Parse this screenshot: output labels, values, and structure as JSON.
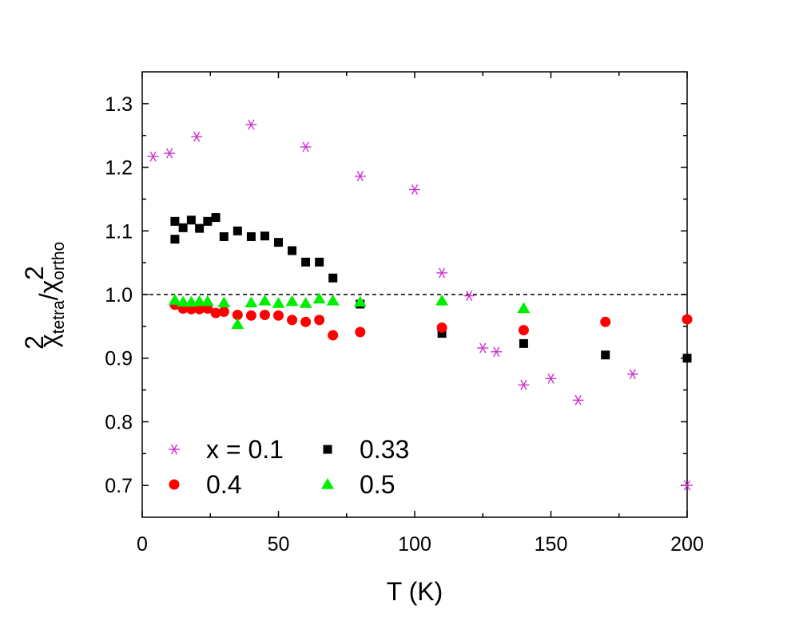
{
  "chart_data": {
    "type": "scatter",
    "title": "",
    "xlabel": "T (K)",
    "ylabel": {
      "base1": "χ",
      "sup1": "2",
      "sub1": "tetra",
      "slash": "/",
      "base2": "χ",
      "sup2": "2",
      "sub2": "ortho"
    },
    "xlim": [
      0,
      200
    ],
    "ylim": [
      0.65,
      1.35
    ],
    "x_ticks": [
      0,
      50,
      100,
      150,
      200
    ],
    "x_tick_labels": [
      "0",
      "50",
      "100",
      "150",
      "200"
    ],
    "y_ticks": [
      0.7,
      0.8,
      0.9,
      1.0,
      1.1,
      1.2,
      1.3
    ],
    "y_tick_labels": [
      "0.7",
      "0.8",
      "0.9",
      "1.0",
      "1.1",
      "1.2",
      "1.3"
    ],
    "reference_line": {
      "y": 1.0,
      "style": "dashed"
    },
    "legend_position": "bottom-left",
    "series": [
      {
        "name": "x = 0.1",
        "marker": "asterisk",
        "color": "#cc33cc",
        "x": [
          4,
          10,
          20,
          40,
          60,
          80,
          100,
          110,
          120,
          125,
          130,
          140,
          150,
          160,
          180,
          200
        ],
        "y": [
          1.217,
          1.222,
          1.248,
          1.267,
          1.232,
          1.186,
          1.165,
          1.034,
          0.998,
          0.916,
          0.91,
          0.858,
          0.868,
          0.834,
          0.875,
          0.7
        ]
      },
      {
        "name": "0.33",
        "marker": "square",
        "color": "#000000",
        "x": [
          12,
          12,
          15,
          18,
          21,
          24,
          27,
          30,
          35,
          40,
          45,
          50,
          55,
          60,
          65,
          70,
          80,
          110,
          140,
          170,
          200
        ],
        "y": [
          1.115,
          1.087,
          1.105,
          1.117,
          1.104,
          1.115,
          1.121,
          1.091,
          1.1,
          1.091,
          1.092,
          1.082,
          1.069,
          1.051,
          1.051,
          1.026,
          0.985,
          0.939,
          0.923,
          0.905,
          0.9
        ]
      },
      {
        "name": "0.4",
        "marker": "circle",
        "color": "#ff0000",
        "x": [
          12,
          15,
          18,
          21,
          24,
          27,
          30,
          35,
          40,
          45,
          50,
          55,
          60,
          65,
          70,
          80,
          110,
          140,
          170,
          200
        ],
        "y": [
          0.984,
          0.978,
          0.977,
          0.977,
          0.978,
          0.971,
          0.973,
          0.968,
          0.967,
          0.968,
          0.967,
          0.96,
          0.957,
          0.96,
          0.936,
          0.941,
          0.948,
          0.944,
          0.957,
          0.961
        ]
      },
      {
        "name": "0.5",
        "marker": "triangle",
        "color": "#00ee00",
        "x": [
          12,
          15,
          18,
          21,
          24,
          30,
          35,
          40,
          45,
          50,
          55,
          60,
          65,
          70,
          80,
          110,
          140
        ],
        "y": [
          0.991,
          0.988,
          0.988,
          0.989,
          0.989,
          0.987,
          0.953,
          0.987,
          0.99,
          0.986,
          0.989,
          0.986,
          0.993,
          0.99,
          0.988,
          0.99,
          0.978
        ]
      }
    ]
  }
}
